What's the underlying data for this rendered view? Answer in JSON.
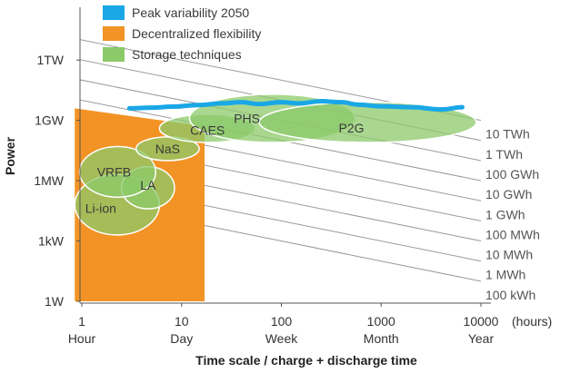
{
  "chart_data": {
    "type": "bubble",
    "x_scale": "log",
    "y_scale": "log",
    "xlabel": "Time scale / charge + discharge time",
    "ylabel": "Power",
    "x_unit_label": "(hours)",
    "x_ticks": [
      {
        "value": 1,
        "label": "1",
        "sublabel": "Hour"
      },
      {
        "value": 10,
        "label": "10",
        "sublabel": "Day"
      },
      {
        "value": 100,
        "label": "100",
        "sublabel": "Week"
      },
      {
        "value": 1000,
        "label": "1000",
        "sublabel": "Month"
      },
      {
        "value": 10000,
        "label": "10000",
        "sublabel": "Year"
      }
    ],
    "y_ticks": [
      {
        "value": 1,
        "label": "1W"
      },
      {
        "value": 1000,
        "label": "1kW"
      },
      {
        "value": 1000000,
        "label": "1MW"
      },
      {
        "value": 1000000000,
        "label": "1GW"
      },
      {
        "value": 1000000000000,
        "label": "1TW"
      }
    ],
    "legend": [
      {
        "label": "Peak variability 2050",
        "color": "#1aa7e6"
      },
      {
        "label": "Decentralized flexibility",
        "color": "#f39325"
      },
      {
        "label": "Storage techniques",
        "color": "#8cc969"
      }
    ],
    "legend_position": "top-left",
    "energy_lines": [
      {
        "label": "10 TWh",
        "energy_wh": 10000000000000
      },
      {
        "label": "1 TWh",
        "energy_wh": 1000000000000
      },
      {
        "label": "100 GWh",
        "energy_wh": 100000000000
      },
      {
        "label": "10 GWh",
        "energy_wh": 10000000000
      },
      {
        "label": "1 GWh",
        "energy_wh": 1000000000
      },
      {
        "label": "100 MWh",
        "energy_wh": 100000000
      },
      {
        "label": "10 MWh",
        "energy_wh": 10000000
      },
      {
        "label": "1 MWh",
        "energy_wh": 1000000
      },
      {
        "label": "100 kWh",
        "energy_wh": 100000
      }
    ],
    "decentralized_flexibility": {
      "x_range_hours": [
        0.85,
        17
      ],
      "power_at_left_w": 4000000000,
      "power_at_right_w": 500000000
    },
    "peak_variability_2050": {
      "x_hours": [
        3,
        5,
        8,
        15,
        25,
        40,
        60,
        100,
        150,
        250,
        400,
        600,
        1000,
        2000,
        4000,
        6500
      ],
      "power_w": [
        4000000000,
        4300000000,
        4800000000,
        5800000000,
        7000000000,
        8000000000,
        6500000000,
        8000000000,
        7000000000,
        9000000000,
        8000000000,
        6000000000,
        5000000000,
        4500000000,
        3500000000,
        4500000000
      ]
    },
    "storage_techniques": [
      {
        "name": "Li-ion",
        "x_hours": [
          0.85,
          6
        ],
        "power_w": [
          2000,
          2000000
        ]
      },
      {
        "name": "LA",
        "x_hours": [
          2.5,
          8.5
        ],
        "power_w": [
          40000,
          5000000
        ]
      },
      {
        "name": "VRFB",
        "x_hours": [
          0.95,
          5.5
        ],
        "power_w": [
          150000,
          50000000
        ]
      },
      {
        "name": "NaS",
        "x_hours": [
          3.5,
          15
        ],
        "power_w": [
          10000000,
          150000000
        ]
      },
      {
        "name": "CAES",
        "x_hours": [
          6,
          55
        ],
        "power_w": [
          80000000,
          2000000000
        ]
      },
      {
        "name": "PHS",
        "x_hours": [
          12,
          550
        ],
        "power_w": [
          80000000,
          20000000000
        ]
      },
      {
        "name": "P2G",
        "x_hours": [
          60,
          9000
        ],
        "power_w": [
          80000000,
          8000000000
        ]
      }
    ]
  }
}
